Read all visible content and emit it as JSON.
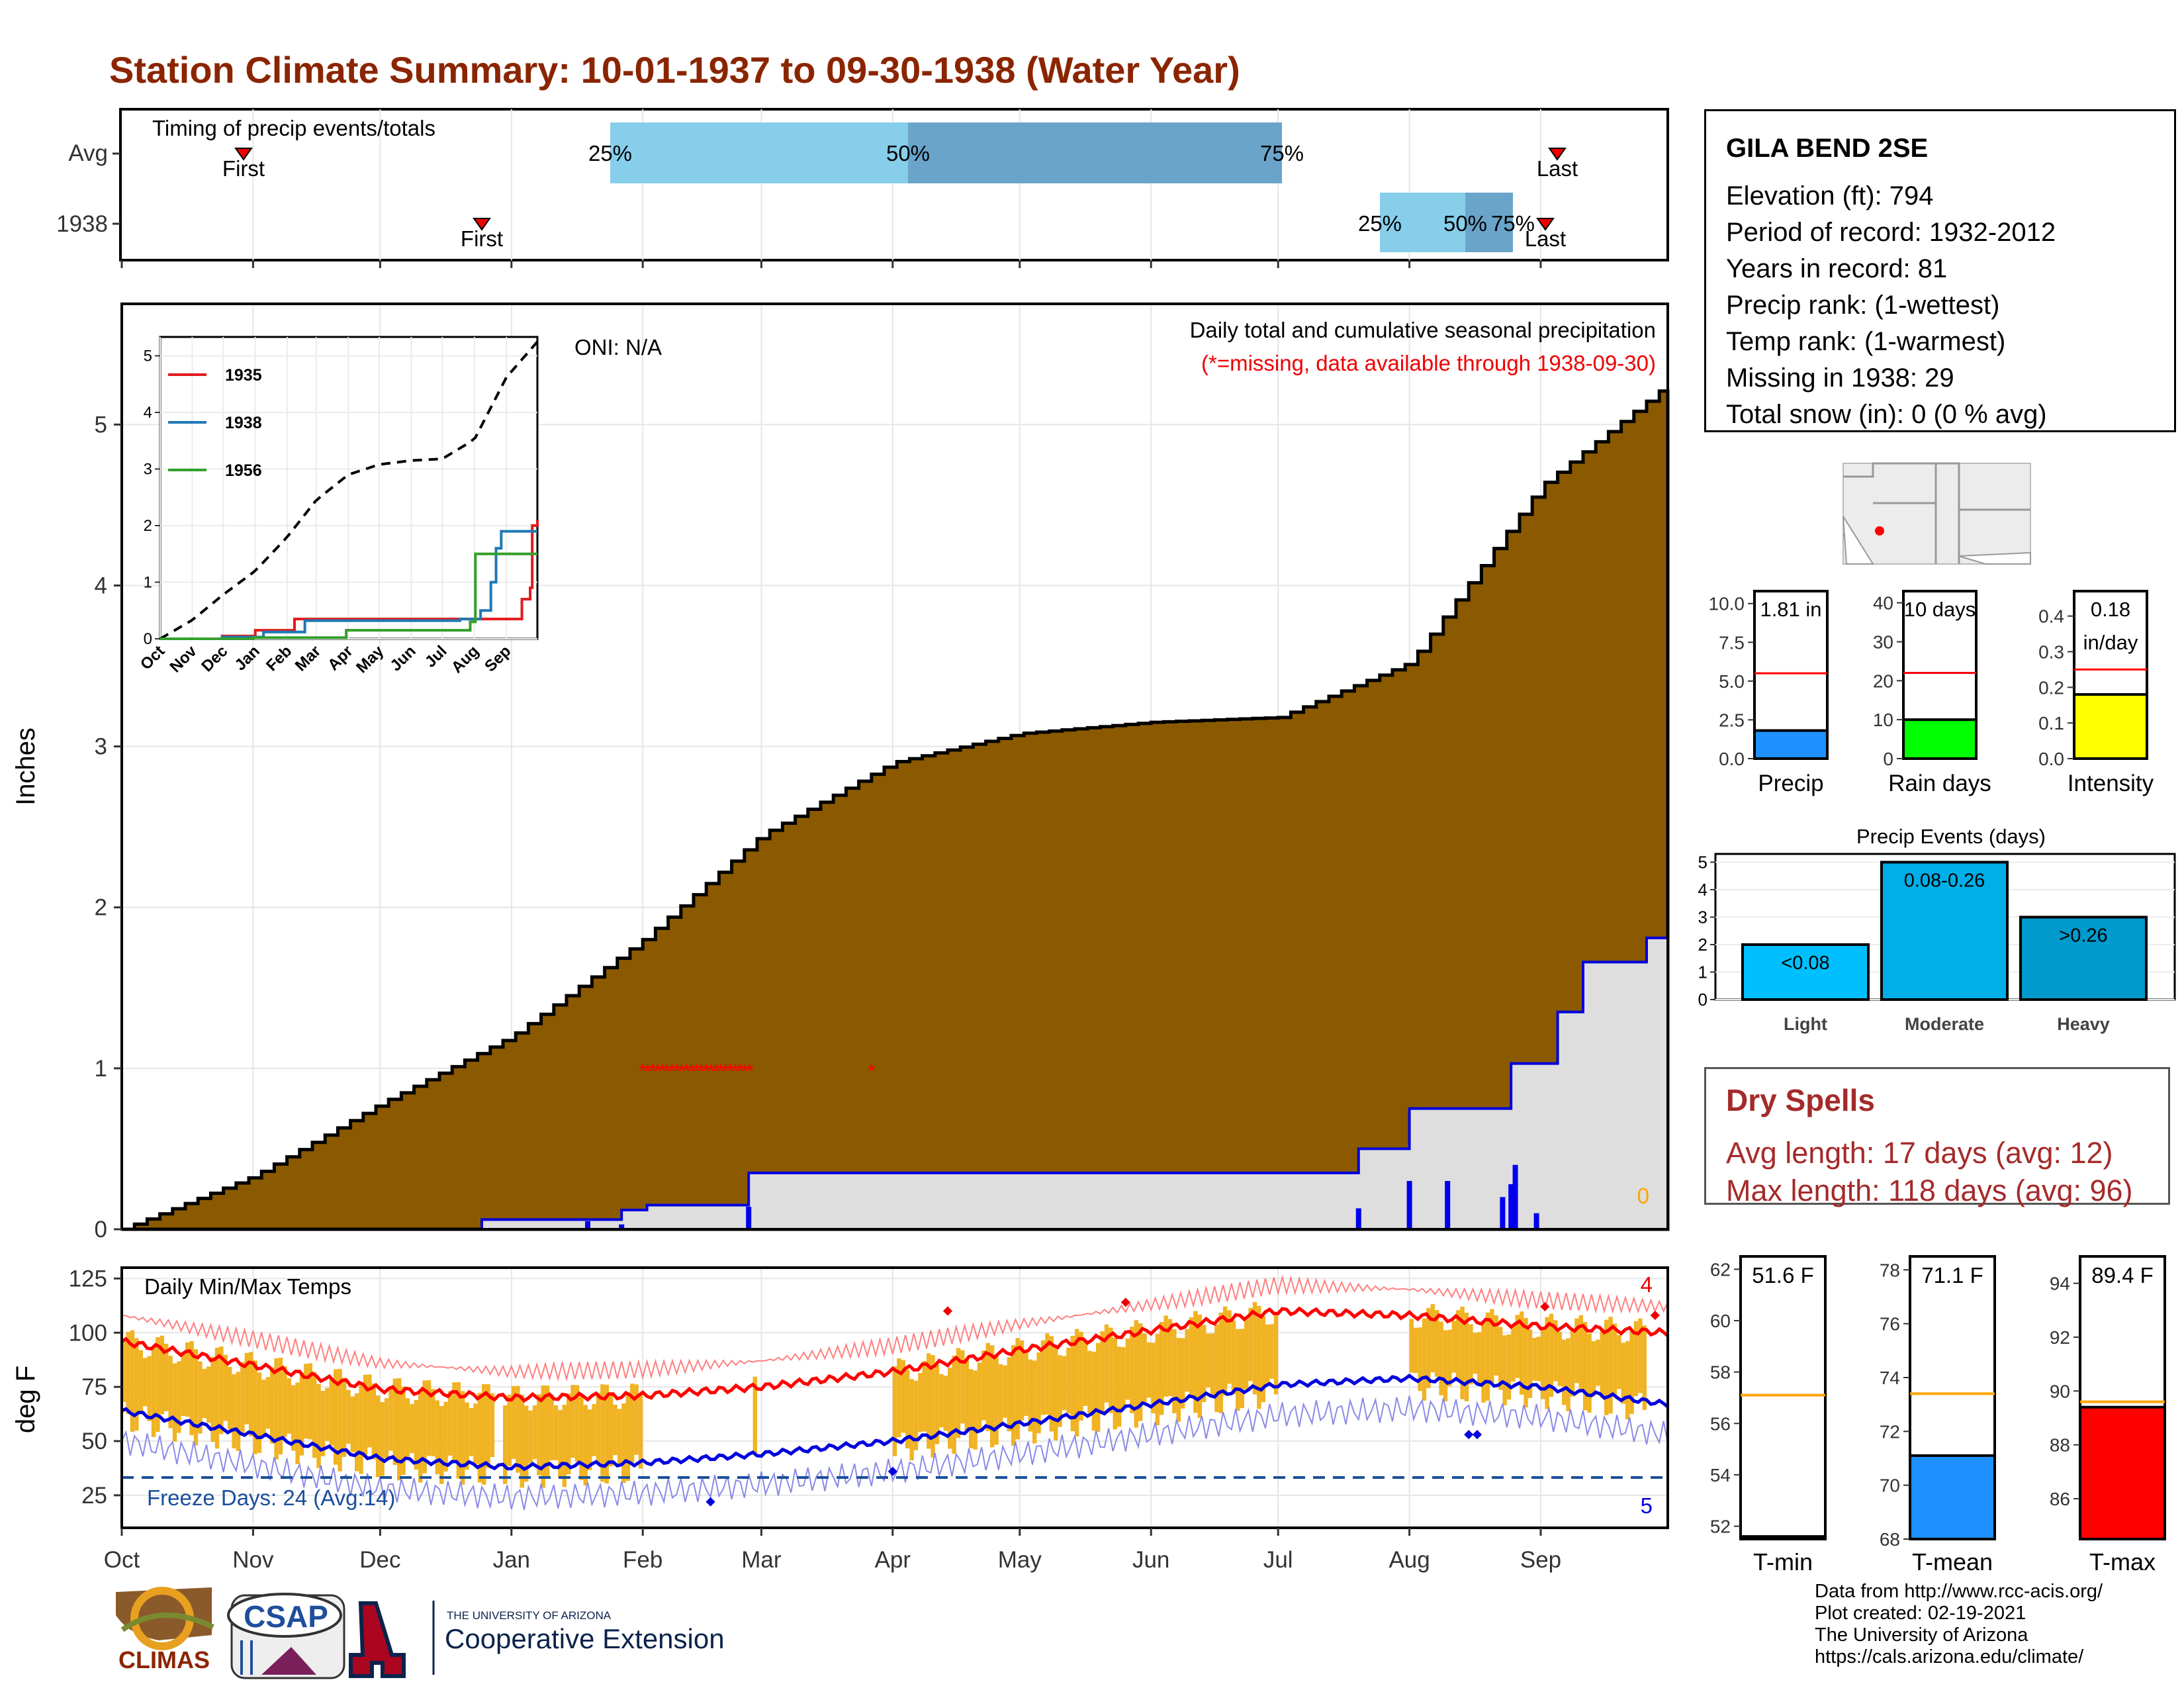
{
  "title": "Station Climate Summary: 10-01-1937 to 09-30-1938 (Water Year)",
  "colors": {
    "title": "#8b2500",
    "cum_fill": "#8b5a00",
    "cum_line": "#000000",
    "avg_fill": "#dedede",
    "avg_line": "#0000dd",
    "missing": "#ff0000",
    "box25": "#87ceeb",
    "box50": "#6aa4cb",
    "temp_bar": "#f0b323",
    "avg_max": "#ff0000",
    "avg_min": "#0000dd",
    "dry": "#a52a2a"
  },
  "timing": {
    "label": "Timing of precip events/totals",
    "rows": [
      "Avg",
      "1938"
    ],
    "first_label": "First",
    "last_label": "Last",
    "pct_labels": [
      "25%",
      "50%",
      "75%"
    ]
  },
  "months": [
    "Oct",
    "Nov",
    "Dec",
    "Jan",
    "Feb",
    "Mar",
    "Apr",
    "May",
    "Jun",
    "Jul",
    "Aug",
    "Sep"
  ],
  "precip_panel": {
    "ylabel": "Inches",
    "subtitle": "Daily total and cumulative seasonal precipitation",
    "missing_note": "(*=missing, data available through 1938-09-30)",
    "oni": "ONI: N/A",
    "corner_value": "0",
    "y_ticks": [
      "0",
      "1",
      "2",
      "3",
      "4",
      "5"
    ]
  },
  "inset": {
    "legend": [
      "1935",
      "1938",
      "1956"
    ],
    "legend_colors": [
      "#e31a1c",
      "#1f78b4",
      "#33a02c"
    ],
    "y_ticks": [
      "0",
      "1",
      "2",
      "3",
      "4",
      "5"
    ],
    "months": [
      "Oct",
      "Nov",
      "Dec",
      "Jan",
      "Feb",
      "Mar",
      "Apr",
      "May",
      "Jun",
      "Jul",
      "Aug",
      "Sep"
    ]
  },
  "temp_panel": {
    "ylabel": "deg F",
    "label": "Daily Min/Max Temps",
    "freeze": "Freeze Days: 24 (Avg:14)",
    "top_count": "4",
    "bottom_count": "5",
    "y_ticks": [
      "25",
      "50",
      "75",
      "100",
      "125"
    ]
  },
  "station": {
    "name": "GILA BEND 2SE",
    "lines": [
      "Elevation (ft): 794",
      "Period of record: 1932-2012",
      "Years in record: 81",
      "Precip rank:  (1-wettest)",
      "Temp rank:  (1-warmest)",
      "Missing in 1938: 29",
      "Total snow (in): 0 (0 % avg)"
    ]
  },
  "gauges": [
    {
      "label": "Precip",
      "value_text": "1.81 in",
      "ticks": [
        "0.0",
        "2.5",
        "5.0",
        "7.5",
        "10.0"
      ],
      "ymax": 10.8,
      "value": 1.81,
      "avg": 5.5,
      "color": "#1e90ff"
    },
    {
      "label": "Rain days",
      "value_text": "10 days",
      "ticks": [
        "0",
        "10",
        "20",
        "30",
        "40"
      ],
      "ymax": 43,
      "value": 10,
      "avg": 22,
      "color": "#00ff00"
    },
    {
      "label": "Intensity",
      "value_text": "0.18",
      "value_text2": "in/day",
      "ticks": [
        "0.0",
        "0.1",
        "0.2",
        "0.3",
        "0.4"
      ],
      "ymax": 0.47,
      "value": 0.18,
      "avg": 0.25,
      "color": "#ffff00"
    }
  ],
  "events": {
    "title": "Precip Events (days)",
    "categories": [
      "Light",
      "Moderate",
      "Heavy"
    ],
    "bar_labels": [
      "<0.08",
      "0.08-0.26",
      ">0.26"
    ],
    "values": [
      2,
      5,
      3
    ],
    "colors": [
      "#00bfff",
      "#00aee8",
      "#009acd"
    ],
    "ticks": [
      "0",
      "1",
      "2",
      "3",
      "4",
      "5"
    ]
  },
  "dry_spells": {
    "title": "Dry Spells",
    "avg": "Avg length: 17 days (avg: 12)",
    "max": "Max length: 118 days (avg: 96)"
  },
  "temp_gauges": [
    {
      "label": "T-min",
      "value_text": "51.6 F",
      "ticks": [
        "52",
        "54",
        "56",
        "58",
        "60",
        "62"
      ],
      "ymin": 51.5,
      "ymax": 62.5,
      "value": 51.6,
      "avg": 57.1,
      "color": "#1e90ff"
    },
    {
      "label": "T-mean",
      "value_text": "71.1 F",
      "ticks": [
        "68",
        "70",
        "72",
        "74",
        "76",
        "78"
      ],
      "ymin": 68,
      "ymax": 78.5,
      "value": 71.1,
      "avg": 73.4,
      "color": "#1e90ff"
    },
    {
      "label": "T-max",
      "value_text": "89.4 F",
      "ticks": [
        "86",
        "88",
        "90",
        "92",
        "94"
      ],
      "ymin": 84.5,
      "ymax": 95,
      "value": 89.4,
      "avg": 89.6,
      "color": "#ff0000"
    }
  ],
  "credits": [
    "Data from http://www.rcc-acis.org/",
    "Plot created: 02-19-2021",
    "The University of Arizona",
    "https://cals.arizona.edu/climate/"
  ],
  "logos": {
    "climas": "CLIMAS",
    "csap": "CSAP",
    "ua_small": "THE UNIVERSITY OF ARIZONA",
    "ua_big": "Cooperative Extension"
  },
  "chart_data": [
    {
      "type": "line",
      "title": "Daily total and cumulative seasonal precipitation",
      "ylabel": "Inches",
      "ylim": [
        0,
        5.75
      ],
      "x": [
        "Oct",
        "Nov",
        "Dec",
        "Jan",
        "Feb",
        "Mar",
        "Apr",
        "May",
        "Jun",
        "Jul",
        "Aug",
        "Sep",
        "Sep-30"
      ],
      "series": [
        {
          "name": "avg cumulative",
          "values": [
            0,
            0.33,
            0.78,
            1.2,
            1.8,
            2.45,
            2.9,
            3.08,
            3.15,
            3.18,
            3.52,
            4.62,
            5.25
          ]
        },
        {
          "name": "1938 cumulative",
          "values": [
            0,
            0,
            0,
            0.12,
            0.15,
            0.35,
            0.35,
            0.35,
            0.35,
            0.35,
            0.5,
            1.05,
            1.81
          ]
        }
      ]
    },
    {
      "type": "line",
      "title": "Daily Min/Max Temps",
      "ylabel": "deg F",
      "ylim": [
        10,
        130
      ],
      "x": [
        "Oct",
        "Nov",
        "Dec",
        "Jan",
        "Feb",
        "Mar",
        "Apr",
        "May",
        "Jun",
        "Jul",
        "Aug",
        "Sep",
        "Sep-30"
      ],
      "series": [
        {
          "name": "avg max",
          "values": [
            96,
            85,
            74,
            70,
            71,
            75,
            82,
            92,
            101,
            110,
            108,
            103,
            100
          ]
        },
        {
          "name": "avg min",
          "values": [
            64,
            53,
            42,
            38,
            40,
            44,
            50,
            58,
            67,
            76,
            79,
            75,
            67
          ]
        }
      ]
    }
  ]
}
